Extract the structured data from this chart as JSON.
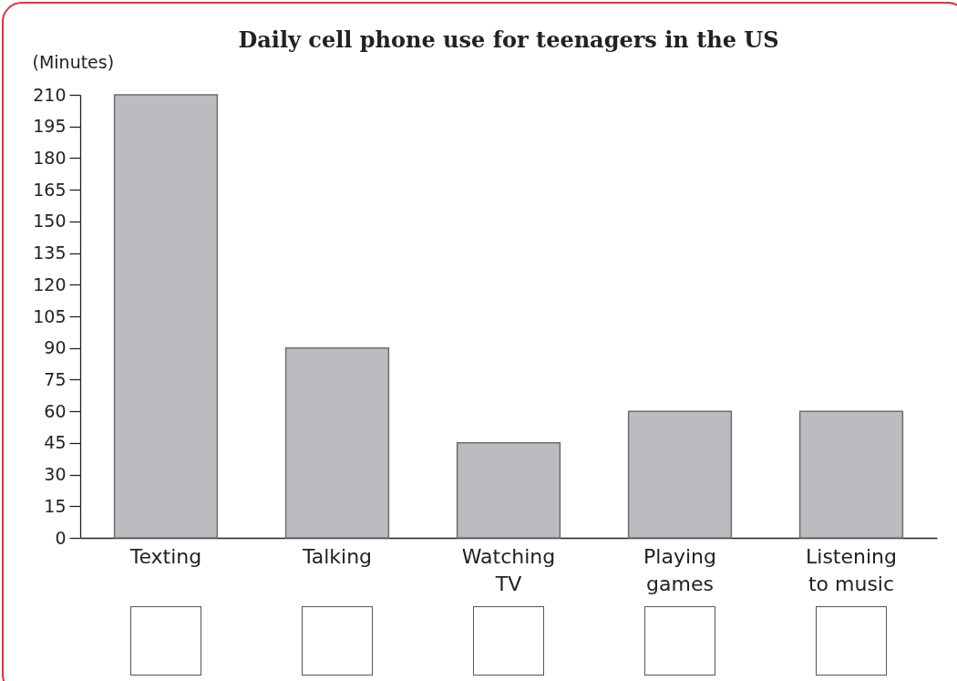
{
  "chart_data": {
    "type": "bar",
    "title": "Daily cell phone use for teenagers in the US",
    "ylabel": "(Minutes)",
    "categories": [
      "Texting",
      "Talking",
      "Watching TV",
      "Playing games",
      "Listening to music"
    ],
    "values": [
      210,
      90,
      45,
      60,
      60
    ],
    "color": "#bcbcc0",
    "ylim": [
      0,
      210
    ],
    "yticks": [
      0,
      15,
      30,
      45,
      60,
      75,
      90,
      105,
      120,
      135,
      150,
      165,
      180,
      195,
      210
    ],
    "grid": false
  }
}
